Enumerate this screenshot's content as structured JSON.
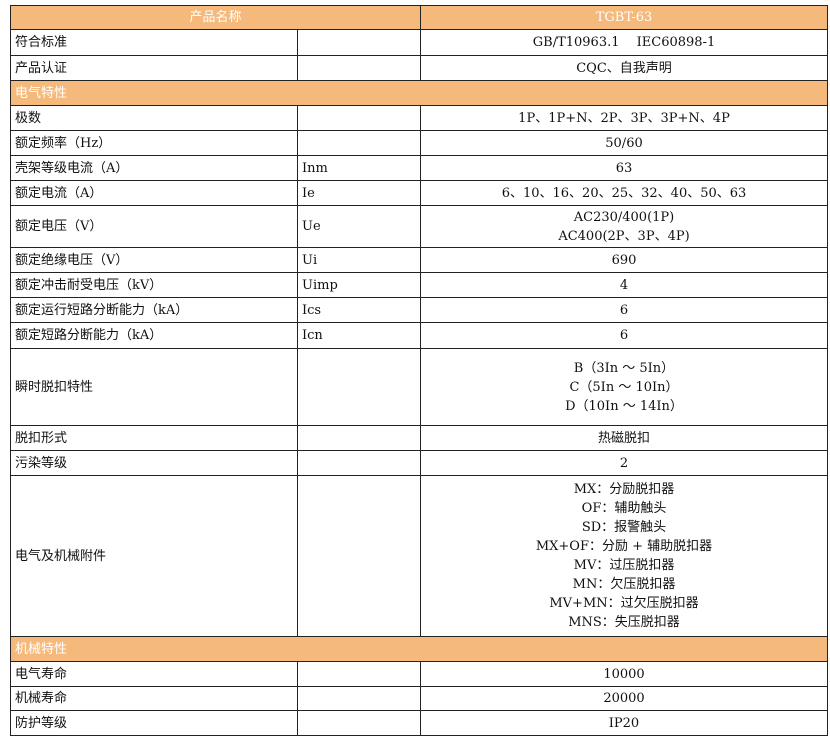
{
  "header": {
    "label": "产品名称",
    "value": "TGBT-63"
  },
  "rows": [
    {
      "type": "row",
      "label": "符合标准",
      "symbol": "",
      "value": [
        "GB/T10963.1　 IEC60898-1"
      ],
      "h": 26
    },
    {
      "type": "row",
      "label": "产品认证",
      "symbol": "",
      "value": [
        "CQC、自我声明"
      ],
      "h": 25
    },
    {
      "type": "section",
      "label": "电气特性",
      "h": 25
    },
    {
      "type": "row",
      "label": "极数",
      "symbol": "",
      "value": [
        "1P、1P+N、2P、3P、3P+N、4P"
      ],
      "h": 25
    },
    {
      "type": "row",
      "label": "额定频率（Hz）",
      "symbol": "",
      "value": [
        "50/60"
      ],
      "h": 25
    },
    {
      "type": "row",
      "label": "壳架等级电流（A）",
      "symbol": "Inm",
      "value": [
        "63"
      ],
      "h": 25
    },
    {
      "type": "row",
      "label": "额定电流（A）",
      "symbol": "Ie",
      "value": [
        "6、10、16、20、25、32、40、50、63"
      ],
      "h": 25
    },
    {
      "type": "row",
      "label": "额定电压（V）",
      "symbol": "Ue",
      "value": [
        "AC230/400(1P)",
        "AC400(2P、3P、4P)"
      ],
      "h": 42
    },
    {
      "type": "row",
      "label": "额定绝缘电压（V）",
      "symbol": "Ui",
      "value": [
        "690"
      ],
      "h": 25
    },
    {
      "type": "row",
      "label": "额定冲击耐受电压（kV）",
      "symbol": "Uimp",
      "value": [
        "4"
      ],
      "h": 25
    },
    {
      "type": "row",
      "label": "额定运行短路分断能力（kA）",
      "symbol": "Ics",
      "value": [
        "6"
      ],
      "h": 25
    },
    {
      "type": "row",
      "label": "额定短路分断能力（kA）",
      "symbol": "Icn",
      "value": [
        "6"
      ],
      "h": 26
    },
    {
      "type": "row",
      "label": "瞬时脱扣特性",
      "symbol": "",
      "value": [
        "B（3In ～ 5In）",
        "C（5In ～ 10In）",
        "D（10In ～ 14In）"
      ],
      "h": 77
    },
    {
      "type": "row",
      "label": "脱扣形式",
      "symbol": "",
      "value": [
        "热磁脱扣"
      ],
      "h": 25
    },
    {
      "type": "row",
      "label": "污染等级",
      "symbol": "",
      "value": [
        "2"
      ],
      "h": 25
    },
    {
      "type": "row",
      "label": "电气及机械附件",
      "symbol": "",
      "value": [
        "MX：分励脱扣器",
        "OF：辅助触头",
        "SD：报警触头",
        "MX+OF：分励 + 辅助脱扣器",
        "MV：过压脱扣器",
        "MN：欠压脱扣器",
        "MV+MN：过欠压脱扣器",
        "MNS：失压脱扣器"
      ],
      "h": 161
    },
    {
      "type": "section",
      "label": "机械特性",
      "h": 25
    },
    {
      "type": "row",
      "label": "电气寿命",
      "symbol": "",
      "value": [
        "10000"
      ],
      "h": 25
    },
    {
      "type": "row",
      "label": "机械寿命",
      "symbol": "",
      "value": [
        "20000"
      ],
      "h": 24
    },
    {
      "type": "row",
      "label": "防护等级",
      "symbol": "",
      "value": [
        "IP20"
      ],
      "h": 25
    }
  ],
  "colors": {
    "header_bg": "#f5b97b",
    "header_text": "#ffffff",
    "border": "#222222"
  }
}
